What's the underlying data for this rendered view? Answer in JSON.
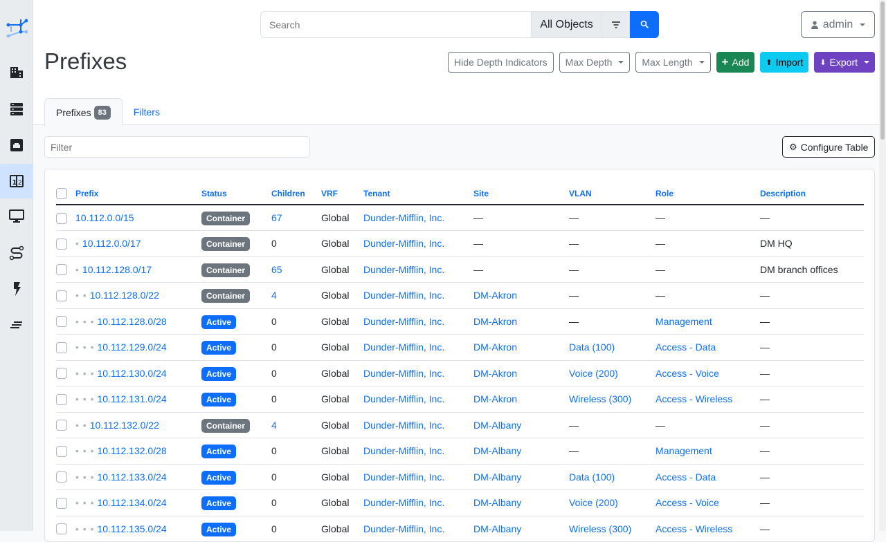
{
  "search": {
    "placeholder": "Search",
    "scope": "All Objects"
  },
  "user": {
    "name": "admin"
  },
  "page": {
    "title": "Prefixes"
  },
  "actions": {
    "hide_depth": "Hide Depth Indicators",
    "max_depth": "Max Depth",
    "max_length": "Max Length",
    "add": "Add",
    "import": "Import",
    "export": "Export"
  },
  "tabs": [
    {
      "label": "Prefixes",
      "count": "83"
    },
    {
      "label": "Filters"
    }
  ],
  "filter": {
    "placeholder": "Filter"
  },
  "configure": "Configure Table",
  "colors": {
    "primary": "#0d6efd",
    "container": "#6c757d",
    "active": "#0d6efd",
    "add": "#198754",
    "import": "#0dcaf0",
    "export": "#6f42c1"
  },
  "columns": [
    "Prefix",
    "Status",
    "Children",
    "VRF",
    "Tenant",
    "Site",
    "VLAN",
    "Role",
    "Description"
  ],
  "rows": [
    {
      "depth": 0,
      "prefix": "10.112.0.0/15",
      "status": "Container",
      "children": "67",
      "vrf": "Global",
      "tenant": "Dunder-Mifflin, Inc.",
      "site": "—",
      "vlan": "—",
      "role": "—",
      "description": "—"
    },
    {
      "depth": 1,
      "prefix": "10.112.0.0/17",
      "status": "Container",
      "children": "0",
      "vrf": "Global",
      "tenant": "Dunder-Mifflin, Inc.",
      "site": "—",
      "vlan": "—",
      "role": "—",
      "description": "DM HQ"
    },
    {
      "depth": 1,
      "prefix": "10.112.128.0/17",
      "status": "Container",
      "children": "65",
      "vrf": "Global",
      "tenant": "Dunder-Mifflin, Inc.",
      "site": "—",
      "vlan": "—",
      "role": "—",
      "description": "DM branch offices"
    },
    {
      "depth": 2,
      "prefix": "10.112.128.0/22",
      "status": "Container",
      "children": "4",
      "vrf": "Global",
      "tenant": "Dunder-Mifflin, Inc.",
      "site": "DM-Akron",
      "vlan": "—",
      "role": "—",
      "description": "—"
    },
    {
      "depth": 3,
      "prefix": "10.112.128.0/28",
      "status": "Active",
      "children": "0",
      "vrf": "Global",
      "tenant": "Dunder-Mifflin, Inc.",
      "site": "DM-Akron",
      "vlan": "—",
      "role": "Management",
      "description": "—"
    },
    {
      "depth": 3,
      "prefix": "10.112.129.0/24",
      "status": "Active",
      "children": "0",
      "vrf": "Global",
      "tenant": "Dunder-Mifflin, Inc.",
      "site": "DM-Akron",
      "vlan": "Data (100)",
      "role": "Access - Data",
      "description": "—"
    },
    {
      "depth": 3,
      "prefix": "10.112.130.0/24",
      "status": "Active",
      "children": "0",
      "vrf": "Global",
      "tenant": "Dunder-Mifflin, Inc.",
      "site": "DM-Akron",
      "vlan": "Voice (200)",
      "role": "Access - Voice",
      "description": "—"
    },
    {
      "depth": 3,
      "prefix": "10.112.131.0/24",
      "status": "Active",
      "children": "0",
      "vrf": "Global",
      "tenant": "Dunder-Mifflin, Inc.",
      "site": "DM-Akron",
      "vlan": "Wireless (300)",
      "role": "Access - Wireless",
      "description": "—"
    },
    {
      "depth": 2,
      "prefix": "10.112.132.0/22",
      "status": "Container",
      "children": "4",
      "vrf": "Global",
      "tenant": "Dunder-Mifflin, Inc.",
      "site": "DM-Albany",
      "vlan": "—",
      "role": "—",
      "description": "—"
    },
    {
      "depth": 3,
      "prefix": "10.112.132.0/28",
      "status": "Active",
      "children": "0",
      "vrf": "Global",
      "tenant": "Dunder-Mifflin, Inc.",
      "site": "DM-Albany",
      "vlan": "—",
      "role": "Management",
      "description": "—"
    },
    {
      "depth": 3,
      "prefix": "10.112.133.0/24",
      "status": "Active",
      "children": "0",
      "vrf": "Global",
      "tenant": "Dunder-Mifflin, Inc.",
      "site": "DM-Albany",
      "vlan": "Data (100)",
      "role": "Access - Data",
      "description": "—"
    },
    {
      "depth": 3,
      "prefix": "10.112.134.0/24",
      "status": "Active",
      "children": "0",
      "vrf": "Global",
      "tenant": "Dunder-Mifflin, Inc.",
      "site": "DM-Albany",
      "vlan": "Voice (200)",
      "role": "Access - Voice",
      "description": "—"
    },
    {
      "depth": 3,
      "prefix": "10.112.135.0/24",
      "status": "Active",
      "children": "0",
      "vrf": "Global",
      "tenant": "Dunder-Mifflin, Inc.",
      "site": "DM-Albany",
      "vlan": "Wireless (300)",
      "role": "Access - Wireless",
      "description": "—"
    }
  ],
  "sidebar": [
    "logo-icon",
    "organization-icon",
    "racks-icon",
    "devices-icon",
    "ipam-icon",
    "virtualization-icon",
    "circuits-icon",
    "power-icon",
    "other-icon"
  ]
}
